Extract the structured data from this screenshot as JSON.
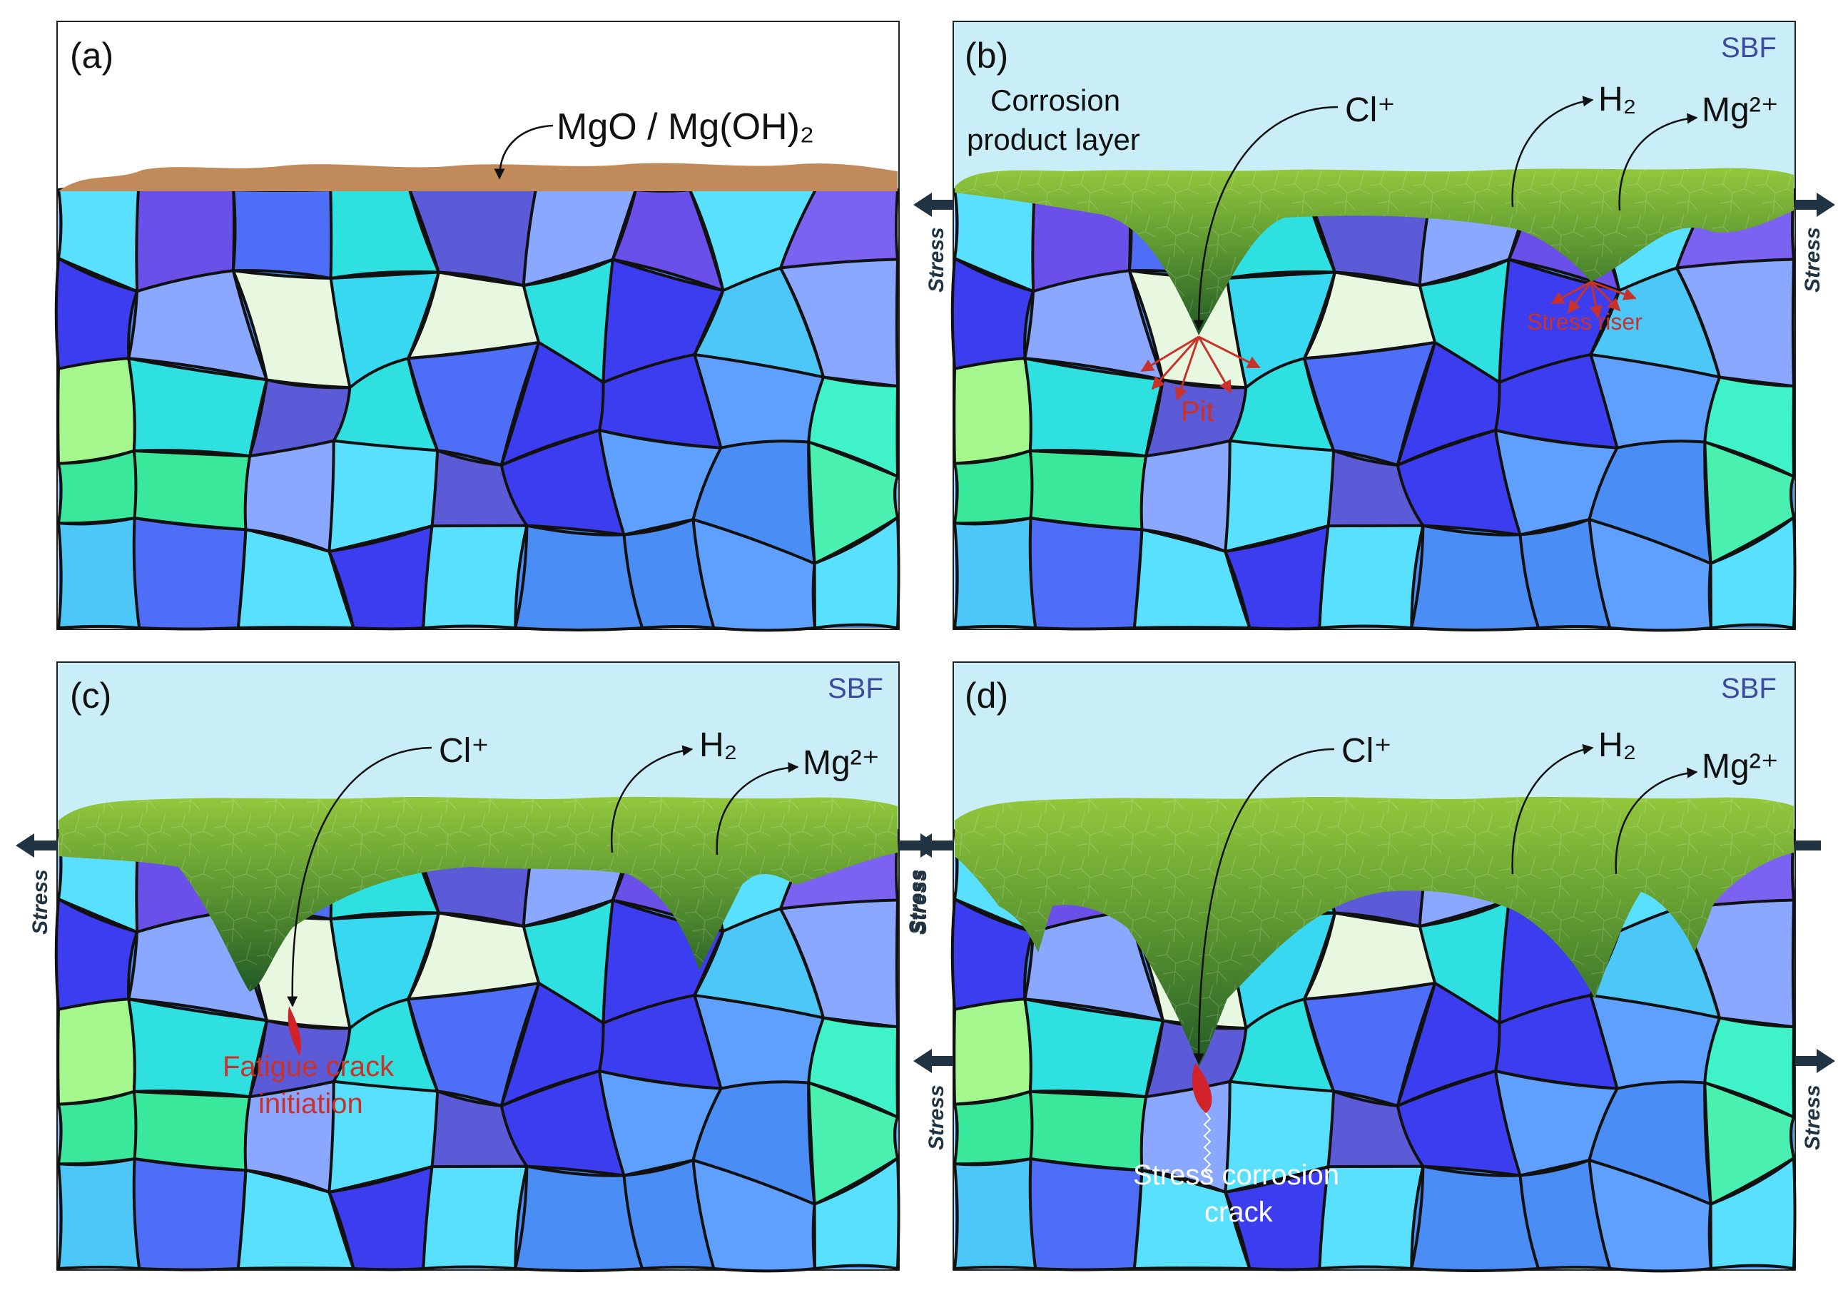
{
  "panels": [
    {
      "id": "a",
      "label": "(a)",
      "medium": "",
      "clLabel": "",
      "h2Label": "",
      "mgLabel": "",
      "layer": "MgO / Mg(OH)₂",
      "cplLine1": "",
      "cplLine2": ""
    },
    {
      "id": "b",
      "label": "(b)",
      "medium": "SBF",
      "clLabel": "Cl⁺",
      "h2Label": "H₂",
      "mgLabel": "Mg²⁺",
      "cplLine1": "Corrosion",
      "cplLine2": "product layer",
      "pit": "Pit",
      "riser": "Stress riser",
      "stress": "Stress"
    },
    {
      "id": "c",
      "label": "(c)",
      "medium": "SBF",
      "clLabel": "Cl⁺",
      "h2Label": "H₂",
      "mgLabel": "Mg²⁺",
      "fatigue1": "Fatigue crack",
      "fatigue2": "initiation",
      "stress": "Stress"
    },
    {
      "id": "d",
      "label": "(d)",
      "medium": "SBF",
      "clLabel": "Cl⁺",
      "h2Label": "H₂",
      "mgLabel": "Mg²⁺",
      "scc1": "Stress corrosion",
      "scc2": "crack",
      "stress": "Stress"
    }
  ],
  "colors": {
    "electrolyte": "#c9eef8",
    "oxide": "#c08a5a",
    "product_light": "#8fc33a",
    "product_dark": "#2f6b2a",
    "crack": "#d2232a",
    "text_red": "#c8322a",
    "text_blue": "#3a4a9c",
    "grain_edge": "#111111",
    "grain_palette": [
      "#3d3df0",
      "#4a8df5",
      "#59f56e",
      "#3ff2c8",
      "#4cc7f7",
      "#5b5bd8",
      "#2ee0e0",
      "#8aa8ff",
      "#6a4fe8",
      "#39e89a",
      "#5fa0ff",
      "#4e6ef7",
      "#38d8f0",
      "#4af0b0",
      "#7b62f0",
      "#5ae0ff"
    ],
    "grain_accents": [
      "#fde96a",
      "#f27ce6",
      "#a3f78d",
      "#e8f8e0",
      "#ffff33"
    ]
  }
}
